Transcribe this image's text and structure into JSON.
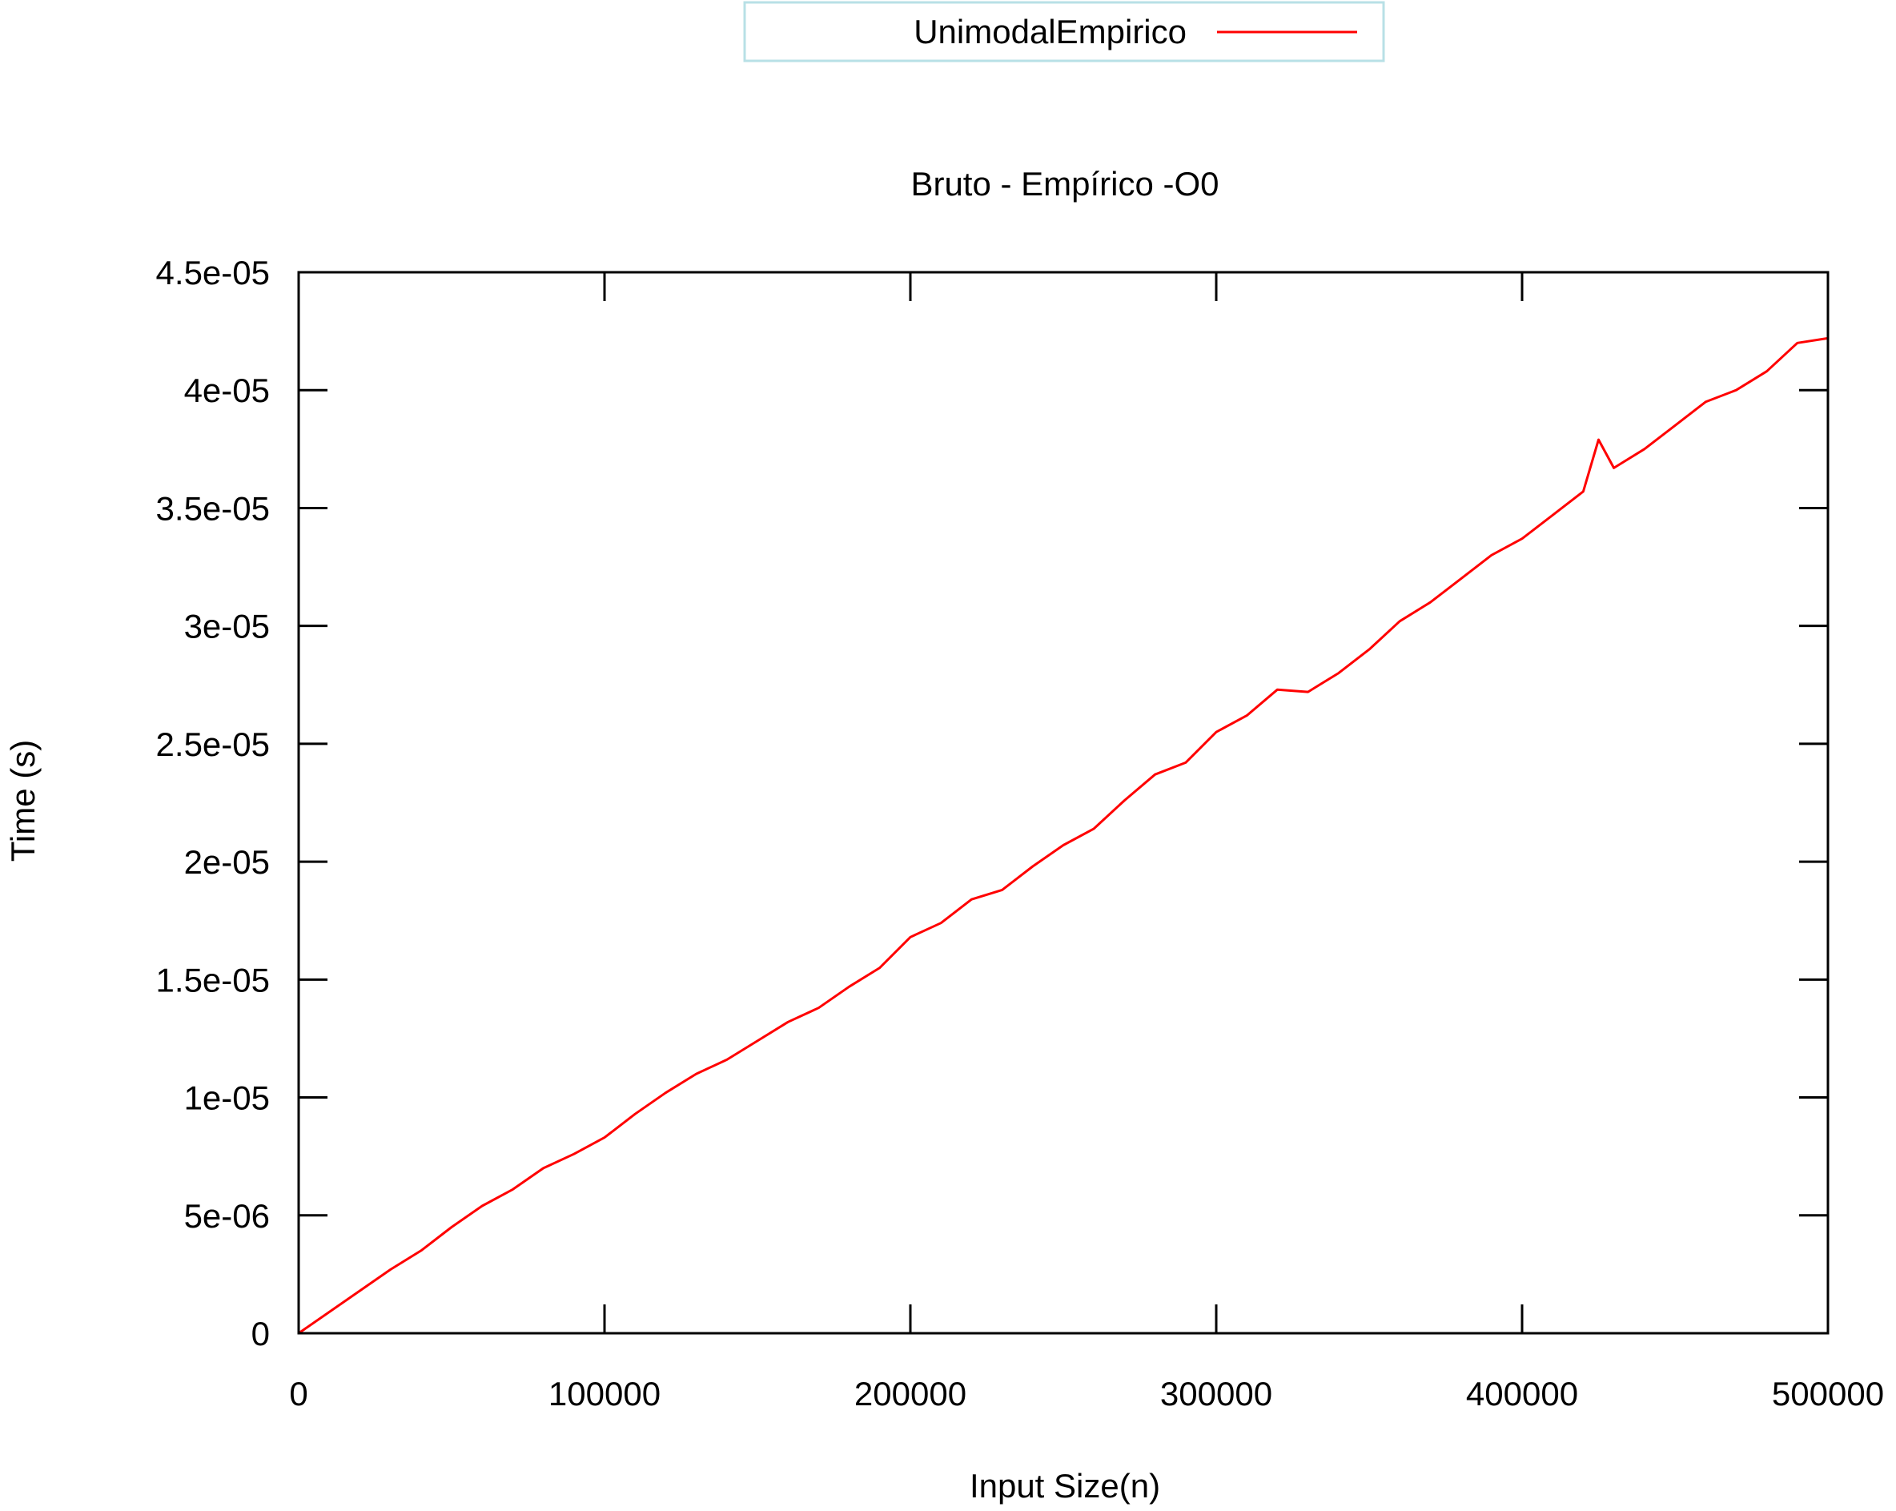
{
  "chart_data": {
    "type": "line",
    "title": "Bruto - Empírico -O0",
    "xlabel": "Input Size(n)",
    "ylabel": "Time (s)",
    "xlim": [
      0,
      500000
    ],
    "ylim": [
      0,
      4.5e-05
    ],
    "x_ticks": [
      0,
      100000,
      200000,
      300000,
      400000,
      500000
    ],
    "x_tick_labels": [
      "0",
      "100000",
      "200000",
      "300000",
      "400000",
      "500000"
    ],
    "y_ticks": [
      0,
      5e-06,
      1e-05,
      1.5e-05,
      2e-05,
      2.5e-05,
      3e-05,
      3.5e-05,
      4e-05,
      4.5e-05
    ],
    "y_tick_labels": [
      "0",
      "5e-06",
      "1e-05",
      "1.5e-05",
      "2e-05",
      "2.5e-05",
      "3e-05",
      "3.5e-05",
      "4e-05",
      "4.5e-05"
    ],
    "grid": false,
    "legend_position": "top-center",
    "series": [
      {
        "name": "UnimodalEmpirico",
        "color": "#ff0000",
        "x": [
          0,
          10000,
          20000,
          30000,
          40000,
          50000,
          60000,
          70000,
          80000,
          90000,
          100000,
          110000,
          120000,
          130000,
          140000,
          150000,
          160000,
          170000,
          180000,
          190000,
          200000,
          210000,
          220000,
          230000,
          240000,
          250000,
          260000,
          270000,
          280000,
          290000,
          300000,
          310000,
          320000,
          330000,
          340000,
          350000,
          360000,
          370000,
          380000,
          390000,
          400000,
          410000,
          420000,
          425000,
          430000,
          440000,
          450000,
          460000,
          470000,
          480000,
          490000,
          500000
        ],
        "y": [
          0,
          9e-07,
          1.8e-06,
          2.7e-06,
          3.5e-06,
          4.5e-06,
          5.4e-06,
          6.1e-06,
          7e-06,
          7.6e-06,
          8.3e-06,
          9.3e-06,
          1.02e-05,
          1.1e-05,
          1.16e-05,
          1.24e-05,
          1.32e-05,
          1.38e-05,
          1.47e-05,
          1.55e-05,
          1.68e-05,
          1.74e-05,
          1.84e-05,
          1.88e-05,
          1.98e-05,
          2.07e-05,
          2.14e-05,
          2.26e-05,
          2.37e-05,
          2.42e-05,
          2.55e-05,
          2.62e-05,
          2.73e-05,
          2.72e-05,
          2.8e-05,
          2.9e-05,
          3.02e-05,
          3.1e-05,
          3.2e-05,
          3.3e-05,
          3.37e-05,
          3.47e-05,
          3.57e-05,
          3.79e-05,
          3.67e-05,
          3.75e-05,
          3.85e-05,
          3.95e-05,
          4e-05,
          4.08e-05,
          4.2e-05,
          4.22e-05
        ]
      }
    ]
  }
}
